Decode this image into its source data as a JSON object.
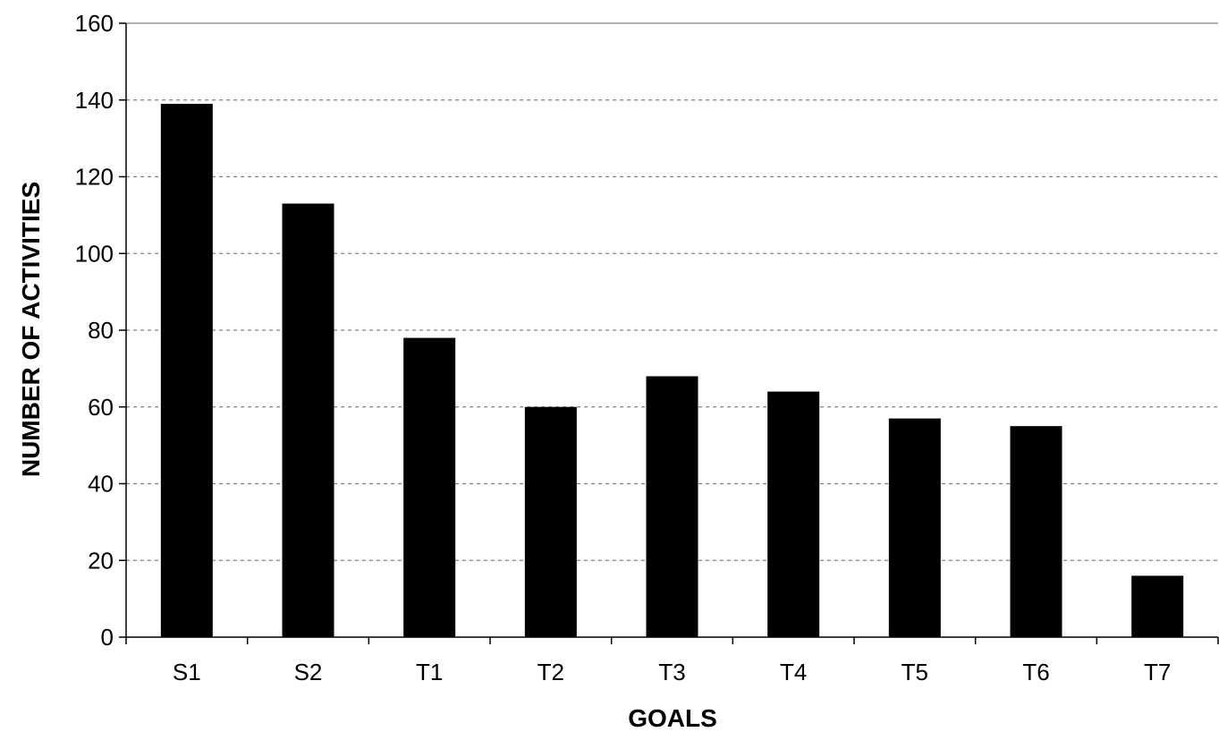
{
  "chart_data": {
    "type": "bar",
    "title": "",
    "xlabel": "GOALS",
    "ylabel": "NUMBER OF ACTIVITIES",
    "categories": [
      "S1",
      "S2",
      "T1",
      "T2",
      "T3",
      "T4",
      "T5",
      "T6",
      "T7"
    ],
    "values": [
      139,
      113,
      78,
      60,
      68,
      64,
      57,
      55,
      16
    ],
    "ylim": [
      0,
      160
    ],
    "yticks": [
      0,
      20,
      40,
      60,
      80,
      100,
      120,
      140,
      160
    ],
    "grid": "horizontal-dashed",
    "legend": "none",
    "bar_color": "#000000",
    "grid_color": "#808080"
  }
}
